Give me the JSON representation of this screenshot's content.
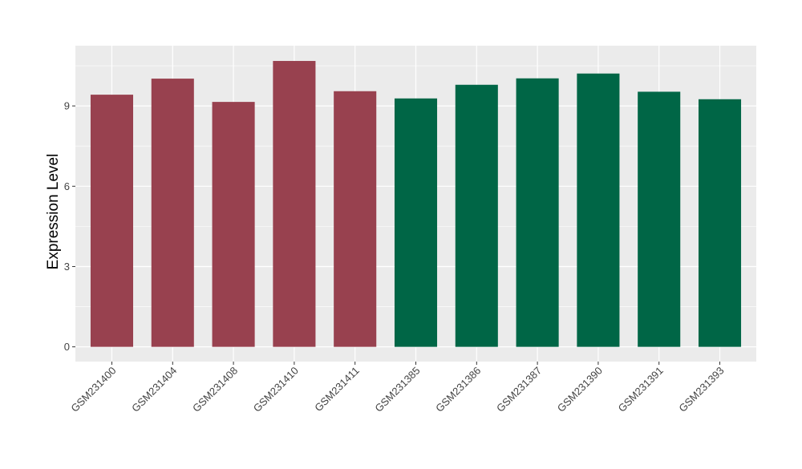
{
  "chart_data": {
    "type": "bar",
    "title": "",
    "xlabel": "",
    "ylabel": "Expression Level",
    "ylim": [
      -0.55,
      11.25
    ],
    "yticks": [
      0,
      3,
      6,
      9
    ],
    "grid": true,
    "legend": "none",
    "categories": [
      "GSM231400",
      "GSM231404",
      "GSM231408",
      "GSM231410",
      "GSM231411",
      "GSM231385",
      "GSM231386",
      "GSM231387",
      "GSM231390",
      "GSM231391",
      "GSM231393"
    ],
    "values": [
      9.42,
      10.02,
      9.15,
      10.68,
      9.55,
      9.28,
      9.79,
      10.03,
      10.21,
      9.53,
      9.25
    ],
    "groups": [
      "group1",
      "group1",
      "group1",
      "group1",
      "group1",
      "group2",
      "group2",
      "group2",
      "group2",
      "group2",
      "group2"
    ],
    "group_colors": {
      "group1": "#98414F",
      "group2": "#006646"
    },
    "panel_color": "#EBEBEB",
    "grid_color": "#FFFFFF"
  }
}
